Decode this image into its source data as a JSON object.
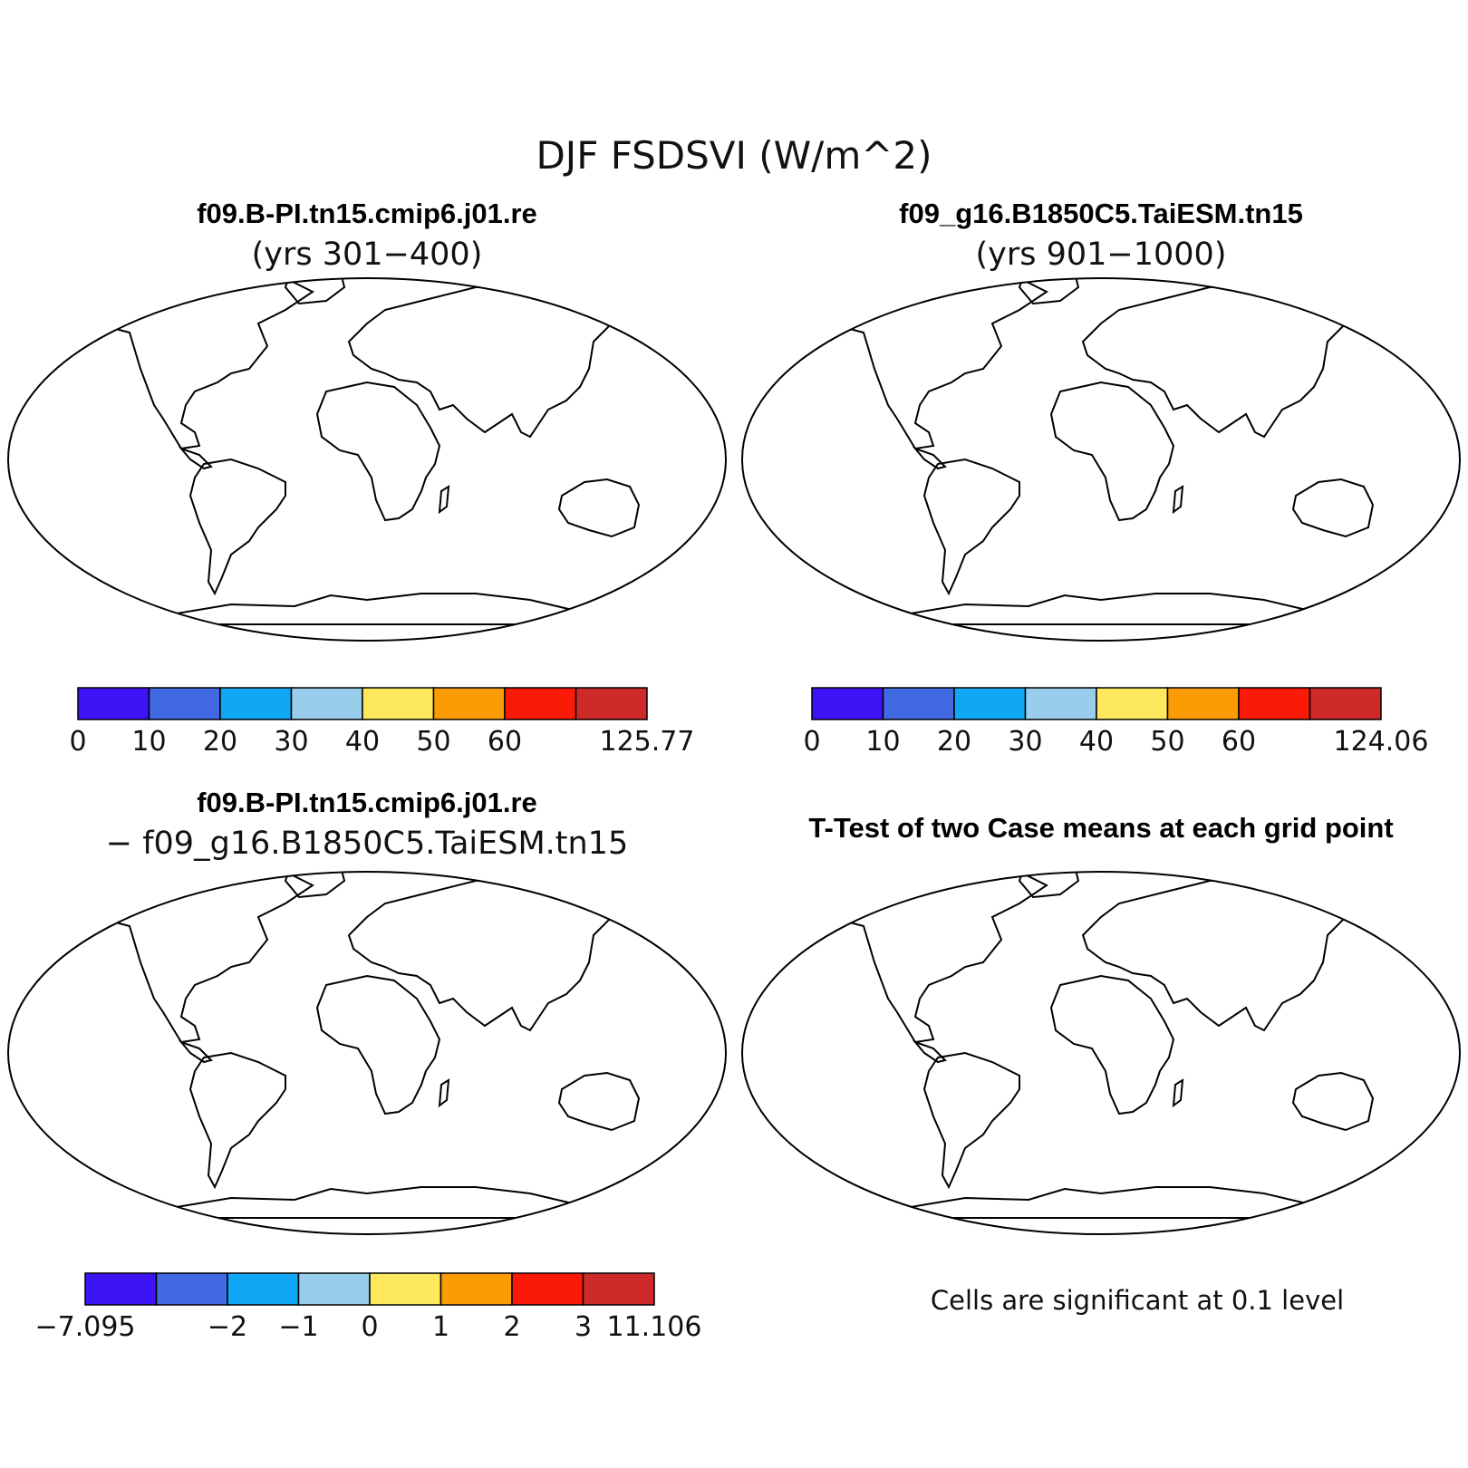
{
  "figure": {
    "title": "DJF FSDSVI (W/m^2)"
  },
  "panels": [
    {
      "title_line1": "f09.B-PI.tn15.cmip6.j01.re",
      "title_line2": "(yrs 301−400)",
      "colorbar": {
        "colors": [
          "#3c14f5",
          "#4169e1",
          "#10a8f5",
          "#98cdeb",
          "#fde85e",
          "#fb9b06",
          "#fb1a07",
          "#cf2a2a"
        ],
        "labels": [
          "0",
          "10",
          "20",
          "30",
          "40",
          "50",
          "60",
          "",
          "125.77"
        ]
      }
    },
    {
      "title_line1": "f09_g16.B1850C5.TaiESM.tn15",
      "title_line2": "(yrs 901−1000)",
      "colorbar": {
        "colors": [
          "#3c14f5",
          "#4169e1",
          "#10a8f5",
          "#98cdeb",
          "#fde85e",
          "#fb9b06",
          "#fb1a07",
          "#cf2a2a"
        ],
        "labels": [
          "0",
          "10",
          "20",
          "30",
          "40",
          "50",
          "60",
          "",
          "124.06"
        ]
      }
    },
    {
      "title_line1": "f09.B-PI.tn15.cmip6.j01.re",
      "title_line2": "− f09_g16.B1850C5.TaiESM.tn15",
      "colorbar": {
        "colors": [
          "#3c14f5",
          "#4169e1",
          "#10a8f5",
          "#98cdeb",
          "#fde85e",
          "#fb9b06",
          "#fb1a07",
          "#cf2a2a"
        ],
        "labels": [
          "−7.095",
          "",
          "−2",
          "−1",
          "0",
          "1",
          "2",
          "3",
          "11.106"
        ]
      }
    },
    {
      "title_line1": "T-Test of two Case means at each grid point",
      "footnote": "Cells are significant at 0.1 level",
      "significance_color": "#ff0000"
    }
  ]
}
